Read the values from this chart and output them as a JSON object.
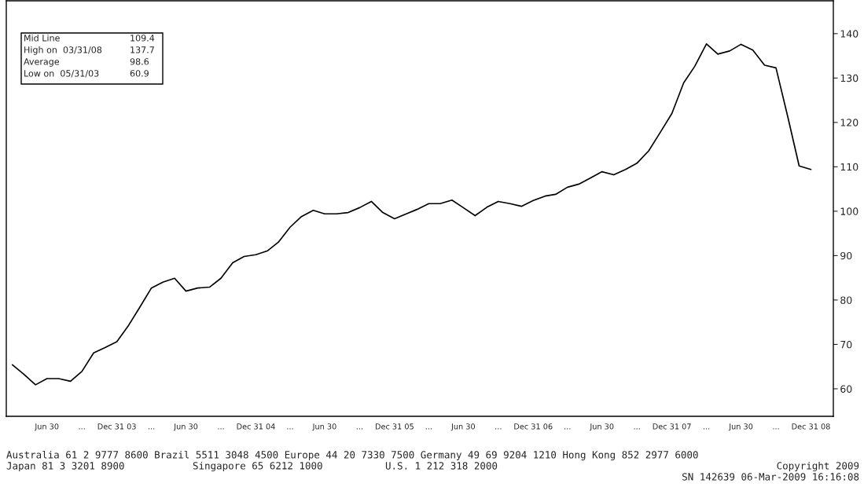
{
  "chart_data": {
    "type": "line",
    "x": [
      "2003-03-31",
      "2003-04-30",
      "2003-05-31",
      "2003-06-30",
      "2003-07-31",
      "2003-08-31",
      "2003-09-30",
      "2003-10-31",
      "2003-11-30",
      "2003-12-31",
      "2004-01-31",
      "2004-02-29",
      "2004-03-31",
      "2004-04-30",
      "2004-05-31",
      "2004-06-30",
      "2004-07-31",
      "2004-08-31",
      "2004-09-30",
      "2004-10-31",
      "2004-11-30",
      "2004-12-31",
      "2005-01-31",
      "2005-02-28",
      "2005-03-31",
      "2005-04-30",
      "2005-05-31",
      "2005-06-30",
      "2005-07-31",
      "2005-08-31",
      "2005-09-30",
      "2005-10-31",
      "2005-11-30",
      "2005-12-31",
      "2006-01-31",
      "2006-02-28",
      "2006-03-31",
      "2006-04-30",
      "2006-05-31",
      "2006-06-30",
      "2006-07-31",
      "2006-08-31",
      "2006-09-30",
      "2006-10-31",
      "2006-11-30",
      "2006-12-31",
      "2007-01-31",
      "2007-02-28",
      "2007-03-31",
      "2007-04-30",
      "2007-05-31",
      "2007-06-30",
      "2007-07-31",
      "2007-08-31",
      "2007-09-30",
      "2007-10-31",
      "2007-11-30",
      "2007-12-31",
      "2008-01-31",
      "2008-02-29",
      "2008-03-31",
      "2008-04-30",
      "2008-05-31",
      "2008-06-30",
      "2008-07-31",
      "2008-08-31",
      "2008-09-30",
      "2008-10-31",
      "2008-11-30",
      "2008-12-31"
    ],
    "series": [
      {
        "color": "#000000",
        "values": [
          65.4,
          63.3,
          60.9,
          62.3,
          62.3,
          61.7,
          63.9,
          68.1,
          69.3,
          70.6,
          74.3,
          78.3,
          82.7,
          84.0,
          84.9,
          82.0,
          82.7,
          82.9,
          84.9,
          88.4,
          89.8,
          90.2,
          91.1,
          93.0,
          96.4,
          98.8,
          100.2,
          99.4,
          99.4,
          99.7,
          100.8,
          102.2,
          99.7,
          98.3,
          99.4,
          100.4,
          101.7,
          101.7,
          102.5,
          100.8,
          99.0,
          100.9,
          102.2,
          101.7,
          101.1,
          102.4,
          103.4,
          103.8,
          105.4,
          106.1,
          107.5,
          108.9,
          108.2,
          109.4,
          110.8,
          113.6,
          117.7,
          122.0,
          128.9,
          132.6,
          137.7,
          135.4,
          136.1,
          137.6,
          136.3,
          132.9,
          132.3,
          121.3,
          110.2,
          109.4
        ]
      }
    ],
    "xlim": [
      "2003-03-15",
      "2009-02-28"
    ],
    "xticks": [
      {
        "value": "2003-06-30",
        "label": "Jun 30"
      },
      {
        "value": "2003-09-30",
        "label": "..."
      },
      {
        "value": "2003-12-31",
        "label": "Dec 31 03"
      },
      {
        "value": "2004-03-31",
        "label": "..."
      },
      {
        "value": "2004-06-30",
        "label": "Jun 30"
      },
      {
        "value": "2004-09-30",
        "label": "..."
      },
      {
        "value": "2004-12-31",
        "label": "Dec 31 04"
      },
      {
        "value": "2005-03-31",
        "label": "..."
      },
      {
        "value": "2005-06-30",
        "label": "Jun 30"
      },
      {
        "value": "2005-09-30",
        "label": "..."
      },
      {
        "value": "2005-12-31",
        "label": "Dec 31 05"
      },
      {
        "value": "2006-03-31",
        "label": "..."
      },
      {
        "value": "2006-06-30",
        "label": "Jun 30"
      },
      {
        "value": "2006-09-30",
        "label": "..."
      },
      {
        "value": "2006-12-31",
        "label": "Dec 31 06"
      },
      {
        "value": "2007-03-31",
        "label": "..."
      },
      {
        "value": "2007-06-30",
        "label": "Jun 30"
      },
      {
        "value": "2007-09-30",
        "label": "..."
      },
      {
        "value": "2007-12-31",
        "label": "Dec 31 07"
      },
      {
        "value": "2008-03-31",
        "label": "..."
      },
      {
        "value": "2008-06-30",
        "label": "Jun 30"
      },
      {
        "value": "2008-09-30",
        "label": "..."
      },
      {
        "value": "2008-12-31",
        "label": "Dec 31 08"
      }
    ],
    "ylim": [
      53.8,
      147.4
    ],
    "yticks": [
      60,
      70,
      80,
      90,
      100,
      110,
      120,
      130,
      140
    ],
    "grid": false,
    "legend": false,
    "marker": "none",
    "line_style": "solid",
    "annotations": [
      "Mid Line",
      "109.4",
      "High on  03/31/08",
      "137.7",
      "Average",
      "98.6",
      "Low on  05/31/03",
      "60.9",
      "Australia 61 2 9777 8600 Brazil 5511 3048 4500 Europe 44 20 7330 7500 Germany 49 69 9204 1210 Hong Kong 852 2977 6000",
      "Japan 81 3 3201 8900",
      "Singapore 65 6212 1000",
      "U.S. 1 212 318 2000",
      "Copyright 2009",
      "SN 142639 06-Mar-2009 16:16:08"
    ]
  }
}
